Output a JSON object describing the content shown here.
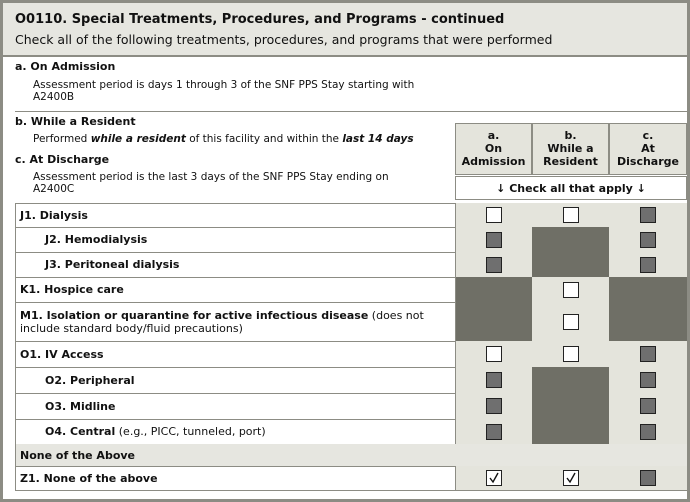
{
  "header": {
    "title": "O0110.  Special Treatments, Procedures, and Programs - continued",
    "subtitle": "Check all of the following treatments, procedures, and programs that were performed"
  },
  "intro": {
    "a_title": "a. On Admission",
    "a_text": "Assessment period is days 1 through 3 of the SNF PPS Stay starting with A2400B",
    "b_title": "b. While a Resident",
    "b_text": [
      {
        "text": "Performed ",
        "emphasis": false
      },
      {
        "text": "while a resident",
        "emphasis": true
      },
      {
        "text": " of this facility and within the ",
        "emphasis": false
      },
      {
        "text": "last 14 days",
        "emphasis": true
      }
    ],
    "c_title": "c. At Discharge",
    "c_text": "Assessment period is the last 3 days of the SNF PPS Stay ending on A2400C"
  },
  "columns": [
    {
      "letter": "a.",
      "title": "On Admission"
    },
    {
      "letter": "b.",
      "title": "While a Resident"
    },
    {
      "letter": "c.",
      "title": "At Discharge"
    }
  ],
  "check_all": "↓ Check all that apply ↓",
  "rows": [
    {
      "label": "J1. Dialysis",
      "cells": [
        {
          "state": "open",
          "checked": false
        },
        {
          "state": "open",
          "checked": false
        },
        {
          "state": "grey",
          "checked": false
        }
      ]
    },
    {
      "label": "J2. Hemodialysis",
      "sub": true,
      "cells": [
        {
          "state": "grey",
          "checked": false
        },
        {
          "state": "na",
          "checked": false
        },
        {
          "state": "grey",
          "checked": false
        }
      ]
    },
    {
      "label": "J3. Peritoneal dialysis",
      "sub": true,
      "cells": [
        {
          "state": "grey",
          "checked": false
        },
        {
          "state": "na",
          "checked": false
        },
        {
          "state": "grey",
          "checked": false
        }
      ]
    },
    {
      "label": "K1. Hospice care",
      "cells": [
        {
          "state": "na",
          "checked": false
        },
        {
          "state": "open",
          "checked": false
        },
        {
          "state": "na",
          "checked": false
        }
      ]
    },
    {
      "label": "M1. Isolation or quarantine for active infectious disease",
      "note": "(does not include standard body/fluid precautions)",
      "cells": [
        {
          "state": "na",
          "checked": false
        },
        {
          "state": "open",
          "checked": false
        },
        {
          "state": "na",
          "checked": false
        }
      ]
    },
    {
      "label": "O1. IV Access",
      "cells": [
        {
          "state": "open",
          "checked": false
        },
        {
          "state": "open",
          "checked": false
        },
        {
          "state": "grey",
          "checked": false
        }
      ]
    },
    {
      "label": "O2. Peripheral",
      "sub": true,
      "cells": [
        {
          "state": "grey",
          "checked": false
        },
        {
          "state": "na",
          "checked": false
        },
        {
          "state": "grey",
          "checked": false
        }
      ]
    },
    {
      "label": "O3. Midline",
      "sub": true,
      "cells": [
        {
          "state": "grey",
          "checked": false
        },
        {
          "state": "na",
          "checked": false
        },
        {
          "state": "grey",
          "checked": false
        }
      ]
    },
    {
      "label": "O4. Central",
      "note": "(e.g., PICC, tunneled, port)",
      "sub": true,
      "cells": [
        {
          "state": "grey",
          "checked": false
        },
        {
          "state": "na",
          "checked": false
        },
        {
          "state": "grey",
          "checked": false
        }
      ]
    },
    {
      "label": "None of the Above"
    },
    {
      "label": "Z1. None of the above",
      "cells": [
        {
          "state": "open",
          "checked": true
        },
        {
          "state": "open",
          "checked": true
        },
        {
          "state": "grey",
          "checked": false
        }
      ]
    }
  ]
}
